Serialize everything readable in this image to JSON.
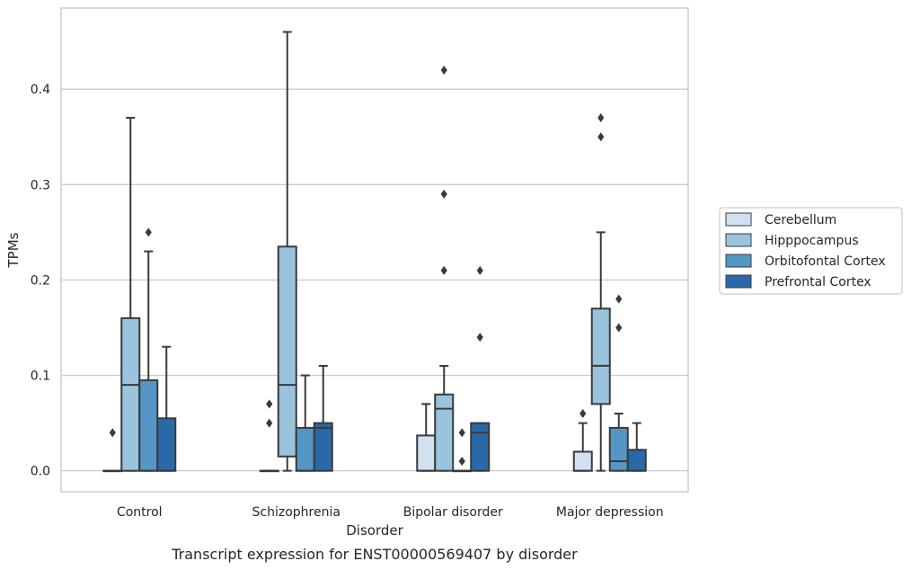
{
  "chart_data": {
    "type": "boxplot",
    "caption": "Transcript expression for ENST00000569407 by disorder",
    "xlabel": "Disorder",
    "ylabel": "TPMs",
    "ylim": [
      -0.022,
      0.485
    ],
    "yticks": [
      "0.0",
      "0.1",
      "0.2",
      "0.3",
      "0.4"
    ],
    "ytick_values": [
      0.0,
      0.1,
      0.2,
      0.3,
      0.4
    ],
    "grid": true,
    "legend_position": "right",
    "categories": [
      "Control",
      "Schizophrenia",
      "Bipolar disorder",
      "Major depression"
    ],
    "series": [
      {
        "name": "Cerebellum",
        "color": "#d1e1f1",
        "boxes": [
          {
            "q1": 0.0,
            "median": 0.0,
            "q3": 0.0,
            "whisker_low": 0.0,
            "whisker_high": 0.0,
            "outliers": [
              0.04
            ]
          },
          {
            "q1": 0.0,
            "median": 0.0,
            "q3": 0.0,
            "whisker_low": 0.0,
            "whisker_high": 0.0,
            "outliers": [
              0.05,
              0.07
            ]
          },
          {
            "q1": 0.0,
            "median": 0.0,
            "q3": 0.037,
            "whisker_low": 0.0,
            "whisker_high": 0.07,
            "outliers": []
          },
          {
            "q1": 0.0,
            "median": 0.0,
            "q3": 0.02,
            "whisker_low": 0.0,
            "whisker_high": 0.05,
            "outliers": [
              0.06
            ]
          }
        ]
      },
      {
        "name": "Hipppocampus",
        "color": "#9ac3dd",
        "boxes": [
          {
            "q1": 0.0,
            "median": 0.09,
            "q3": 0.16,
            "whisker_low": 0.0,
            "whisker_high": 0.37,
            "outliers": []
          },
          {
            "q1": 0.015,
            "median": 0.09,
            "q3": 0.235,
            "whisker_low": 0.0,
            "whisker_high": 0.46,
            "outliers": []
          },
          {
            "q1": 0.0,
            "median": 0.065,
            "q3": 0.08,
            "whisker_low": 0.0,
            "whisker_high": 0.11,
            "outliers": [
              0.21,
              0.29,
              0.42
            ]
          },
          {
            "q1": 0.07,
            "median": 0.11,
            "q3": 0.17,
            "whisker_low": 0.0,
            "whisker_high": 0.25,
            "outliers": [
              0.35,
              0.37
            ]
          }
        ]
      },
      {
        "name": "Orbitofontal Cortex",
        "color": "#5497c6",
        "boxes": [
          {
            "q1": 0.0,
            "median": 0.0,
            "q3": 0.095,
            "whisker_low": 0.0,
            "whisker_high": 0.23,
            "outliers": [
              0.25
            ]
          },
          {
            "q1": 0.0,
            "median": 0.0,
            "q3": 0.045,
            "whisker_low": 0.0,
            "whisker_high": 0.1,
            "outliers": []
          },
          {
            "q1": 0.0,
            "median": 0.0,
            "q3": 0.0,
            "whisker_low": 0.0,
            "whisker_high": 0.0,
            "outliers": [
              0.01,
              0.04
            ]
          },
          {
            "q1": 0.0,
            "median": 0.01,
            "q3": 0.045,
            "whisker_low": 0.0,
            "whisker_high": 0.06,
            "outliers": [
              0.15,
              0.18
            ]
          }
        ]
      },
      {
        "name": "Prefrontal Cortex",
        "color": "#2a69a8",
        "boxes": [
          {
            "q1": 0.0,
            "median": 0.0,
            "q3": 0.055,
            "whisker_low": 0.0,
            "whisker_high": 0.13,
            "outliers": []
          },
          {
            "q1": 0.0,
            "median": 0.045,
            "q3": 0.05,
            "whisker_low": 0.0,
            "whisker_high": 0.11,
            "outliers": []
          },
          {
            "q1": 0.0,
            "median": 0.04,
            "q3": 0.05,
            "whisker_low": 0.0,
            "whisker_high": 0.05,
            "outliers": [
              0.14,
              0.21
            ]
          },
          {
            "q1": 0.0,
            "median": 0.0,
            "q3": 0.022,
            "whisker_low": 0.0,
            "whisker_high": 0.05,
            "outliers": []
          }
        ]
      }
    ]
  }
}
